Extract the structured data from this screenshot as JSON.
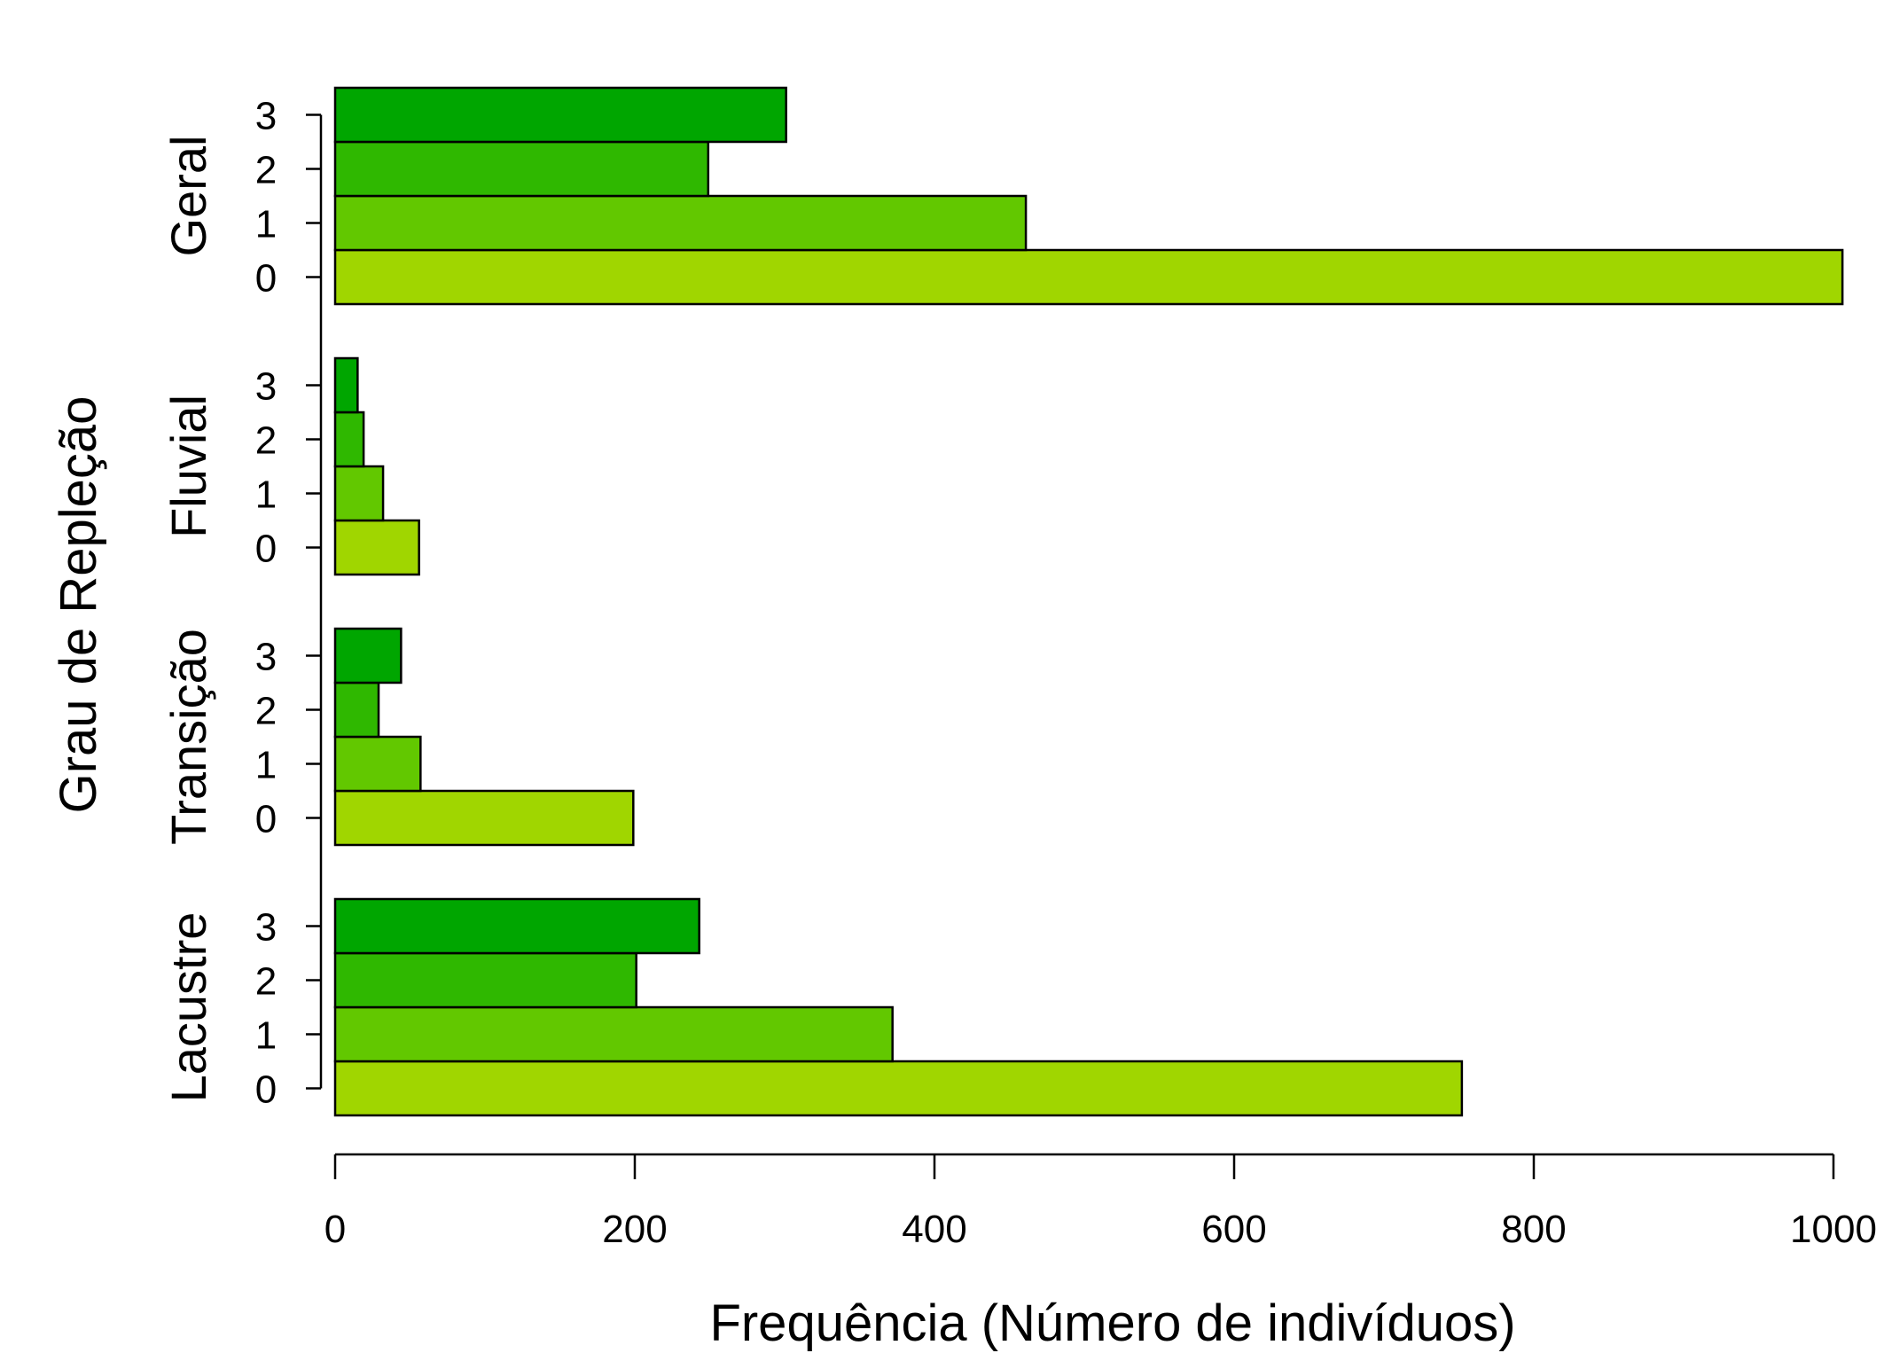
{
  "chart_data": {
    "type": "bar",
    "orientation": "horizontal",
    "title": "",
    "xlabel": "Frequência (Número de indivíduos)",
    "ylabel": "Grau de Repleção",
    "xlim": [
      0,
      1000
    ],
    "x_ticks": [
      "0",
      "200",
      "400",
      "600",
      "800",
      "1000"
    ],
    "categories": [
      "0",
      "1",
      "2",
      "3"
    ],
    "colors": {
      "0": "#a0d600",
      "1": "#62c800",
      "2": "#2fb800",
      "3": "#00a600"
    },
    "groups": [
      {
        "name": "Lacustre",
        "values": [
          752,
          372,
          201,
          243
        ]
      },
      {
        "name": "Transição",
        "values": [
          199,
          57,
          29,
          44
        ]
      },
      {
        "name": "Fluvial",
        "values": [
          56,
          32,
          19,
          15
        ]
      },
      {
        "name": "Geral",
        "values": [
          1006,
          461,
          249,
          301
        ]
      }
    ],
    "grid": false,
    "legend": "none"
  }
}
